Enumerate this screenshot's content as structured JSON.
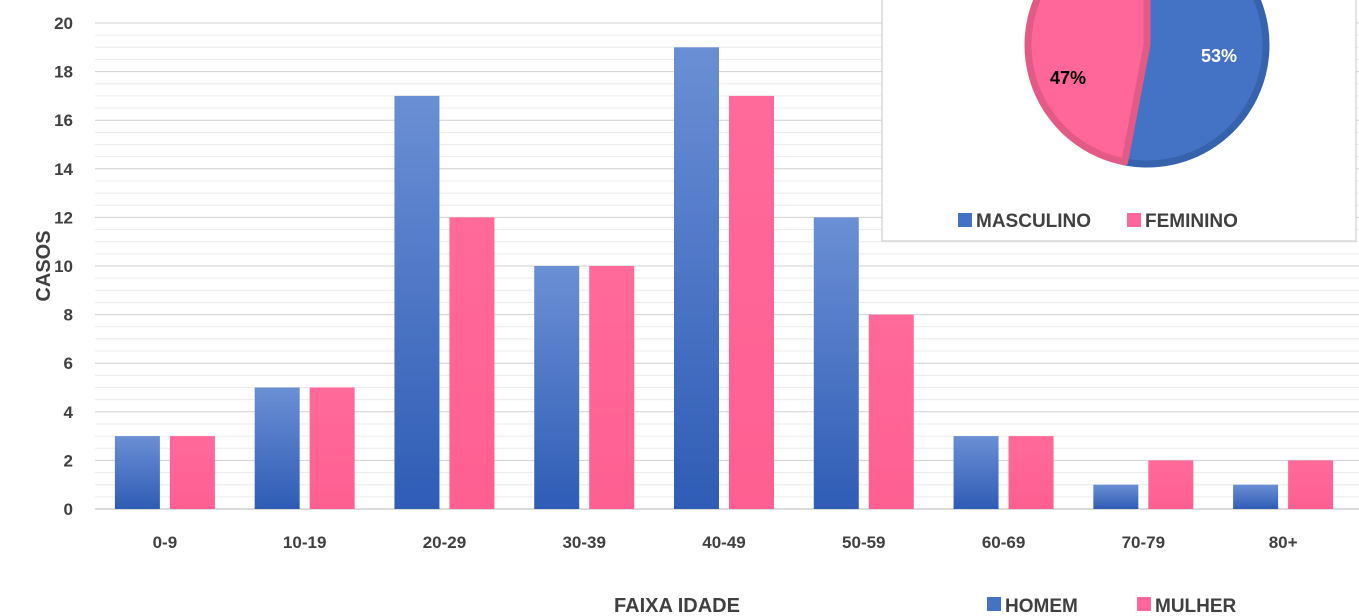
{
  "chart_data": [
    {
      "type": "bar",
      "categories": [
        "0-9",
        "10-19",
        "20-29",
        "30-39",
        "40-49",
        "50-59",
        "60-69",
        "70-79",
        "80+"
      ],
      "series": [
        {
          "name": "HOMEM",
          "values": [
            3,
            5,
            17,
            10,
            19,
            12,
            3,
            1,
            1
          ],
          "color": "#3f6fc4"
        },
        {
          "name": "MULHER",
          "values": [
            3,
            5,
            12,
            10,
            17,
            8,
            3,
            2,
            2
          ],
          "color": "#ff6699"
        }
      ],
      "xlabel": "FAIXA IDADE",
      "ylabel": "CASOS",
      "ylim": [
        0,
        20
      ],
      "yticks": [
        "0",
        "2",
        "4",
        "6",
        "8",
        "10",
        "12",
        "14",
        "16",
        "18",
        "20"
      ],
      "grid": true,
      "legend_position": "bottom-right"
    },
    {
      "type": "pie",
      "slices": [
        {
          "name": "MASCULINO",
          "value": 53,
          "label": "53%",
          "color": "#4472c4"
        },
        {
          "name": "FEMININO",
          "value": 47,
          "label": "47%",
          "color": "#ff6699"
        }
      ],
      "legend_position": "bottom"
    }
  ]
}
